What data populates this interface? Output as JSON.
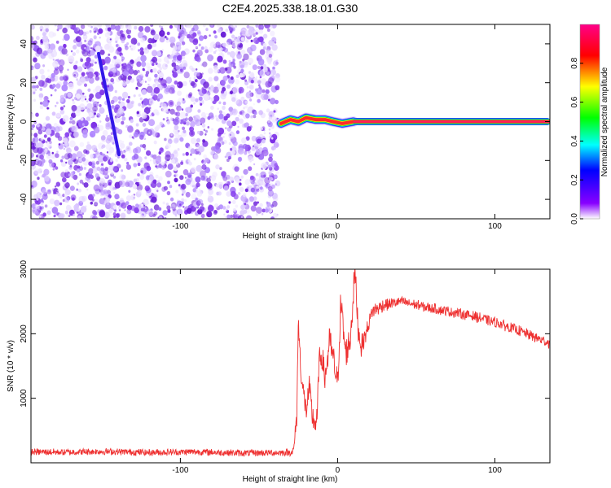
{
  "title": "C2E4.2025.338.18.01.G30",
  "chart_data": [
    {
      "type": "heatmap",
      "xlabel": "Height of straight line (km)",
      "ylabel": "Frequency (Hz)",
      "xlim": [
        -195,
        135
      ],
      "ylim": [
        -50,
        50
      ],
      "x_ticks": [
        -100,
        0,
        100
      ],
      "y_ticks": [
        -40,
        -20,
        0,
        20,
        40
      ],
      "noise_region_x": [
        -195,
        -38
      ],
      "dispersed_trace": {
        "x_start": -152,
        "x_end": -139,
        "y_start": 35,
        "y_end": -17
      },
      "signal_band": {
        "x_start": -40,
        "x_end": 135,
        "center_freq": 0,
        "wobble_points": [
          {
            "x": -36,
            "y": -1
          },
          {
            "x": -30,
            "y": 1
          },
          {
            "x": -25,
            "y": 0
          },
          {
            "x": -20,
            "y": 2
          },
          {
            "x": -14,
            "y": 1
          },
          {
            "x": -8,
            "y": 1
          },
          {
            "x": -3,
            "y": 0
          },
          {
            "x": 3,
            "y": -1
          },
          {
            "x": 10,
            "y": 0
          }
        ]
      },
      "colorbar": {
        "label": "Normalized spectral amplitude",
        "range": [
          0,
          1
        ],
        "ticks": [
          "0.0",
          "0.2",
          "0.4",
          "0.6",
          "0.8"
        ],
        "colors": [
          "#ffffff",
          "#8800ff",
          "#0000ff",
          "#00ffff",
          "#00ff00",
          "#ffff00",
          "#ff0000",
          "#ff0088"
        ]
      }
    },
    {
      "type": "line",
      "xlabel": "Height of straight line (km)",
      "ylabel": "SNR (10 * v/v)",
      "xlim": [
        -195,
        135
      ],
      "ylim": [
        0,
        3000
      ],
      "x_ticks": [
        -100,
        0,
        100
      ],
      "y_ticks": [
        1000,
        2000,
        3000
      ],
      "color": "#ee3030",
      "series": [
        {
          "name": "SNR",
          "points": [
            [
              -195,
              170
            ],
            [
              -170,
              165
            ],
            [
              -150,
              175
            ],
            [
              -120,
              160
            ],
            [
              -90,
              170
            ],
            [
              -60,
              150
            ],
            [
              -30,
              160
            ],
            [
              -28,
              180
            ],
            [
              -26,
              700
            ],
            [
              -25,
              2200
            ],
            [
              -23,
              1300
            ],
            [
              -20,
              800
            ],
            [
              -18,
              1150
            ],
            [
              -16,
              700
            ],
            [
              -14,
              600
            ],
            [
              -13,
              650
            ],
            [
              -12,
              1500
            ],
            [
              -10,
              1700
            ],
            [
              -8,
              1300
            ],
            [
              -5,
              1900
            ],
            [
              -2,
              1500
            ],
            [
              0,
              1200
            ],
            [
              2,
              2500
            ],
            [
              5,
              1700
            ],
            [
              8,
              1900
            ],
            [
              10,
              2600
            ],
            [
              11,
              3000
            ],
            [
              13,
              2100
            ],
            [
              15,
              1800
            ],
            [
              18,
              2000
            ],
            [
              22,
              2350
            ],
            [
              30,
              2450
            ],
            [
              40,
              2500
            ],
            [
              55,
              2420
            ],
            [
              70,
              2350
            ],
            [
              85,
              2280
            ],
            [
              100,
              2180
            ],
            [
              115,
              2050
            ],
            [
              130,
              1900
            ],
            [
              135,
              1850
            ]
          ],
          "noise_amplitude": [
            [
              -195,
              100
            ],
            [
              -29,
              100
            ],
            [
              -26,
              300
            ],
            [
              -10,
              450
            ],
            [
              10,
              450
            ],
            [
              18,
              250
            ],
            [
              40,
              150
            ],
            [
              135,
              160
            ]
          ]
        }
      ]
    }
  ]
}
